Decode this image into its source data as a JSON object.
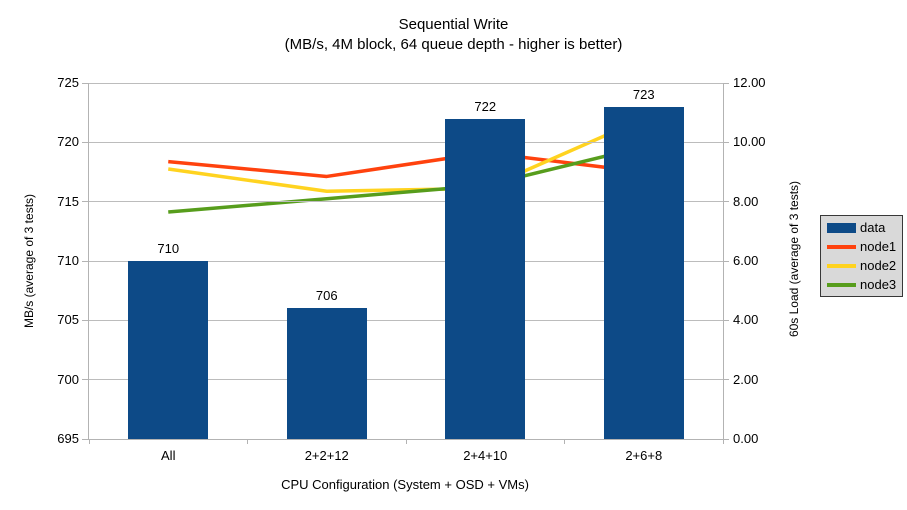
{
  "title": "Sequential Write",
  "subtitle": "(MB/s, 4M block, 64 queue depth - higher is better)",
  "chart_data": {
    "type": "bar",
    "secondary_type": "line",
    "note": "combo chart: bars on left axis, lines on right axis",
    "categories": [
      "All",
      "2+2+12",
      "2+4+10",
      "2+6+8"
    ],
    "bar_series": {
      "name": "data",
      "axis": "left",
      "color": "#0d4a87",
      "values": [
        710,
        706,
        722,
        723
      ],
      "labels": [
        "710",
        "706",
        "722",
        "723"
      ]
    },
    "line_series": [
      {
        "name": "node1",
        "axis": "right",
        "color": "#ff420e",
        "values": [
          9.35,
          8.85,
          9.65,
          9.0
        ]
      },
      {
        "name": "node2",
        "axis": "right",
        "color": "#ffd320",
        "values": [
          9.1,
          8.35,
          8.45,
          10.8
        ]
      },
      {
        "name": "node3",
        "axis": "right",
        "color": "#579d1c",
        "values": [
          7.65,
          8.1,
          8.55,
          9.85
        ]
      }
    ],
    "left_axis": {
      "title": "MB/s (average of 3 tests)",
      "min": 695,
      "max": 725,
      "step": 5,
      "tick_labels": [
        "725",
        "720",
        "715",
        "710",
        "705",
        "700",
        "695"
      ]
    },
    "right_axis": {
      "title": "60s Load (average of 3 tests)",
      "min": 0,
      "max": 12,
      "step": 2,
      "tick_labels": [
        "12.00",
        "10.00",
        "8.00",
        "6.00",
        "4.00",
        "2.00",
        "0.00"
      ]
    },
    "x_axis": {
      "title": "CPU Configuration (System + OSD + VMs)"
    },
    "legend": {
      "position": "right",
      "background": "#d9d9d9",
      "border": "#383838",
      "entries": [
        {
          "label": "data",
          "color": "#0d4a87",
          "type": "bar"
        },
        {
          "label": "node1",
          "color": "#ff420e",
          "type": "line"
        },
        {
          "label": "node2",
          "color": "#ffd320",
          "type": "line"
        },
        {
          "label": "node3",
          "color": "#579d1c",
          "type": "line"
        }
      ]
    },
    "grid": "horizontal",
    "plot_background": "#ffffff"
  }
}
